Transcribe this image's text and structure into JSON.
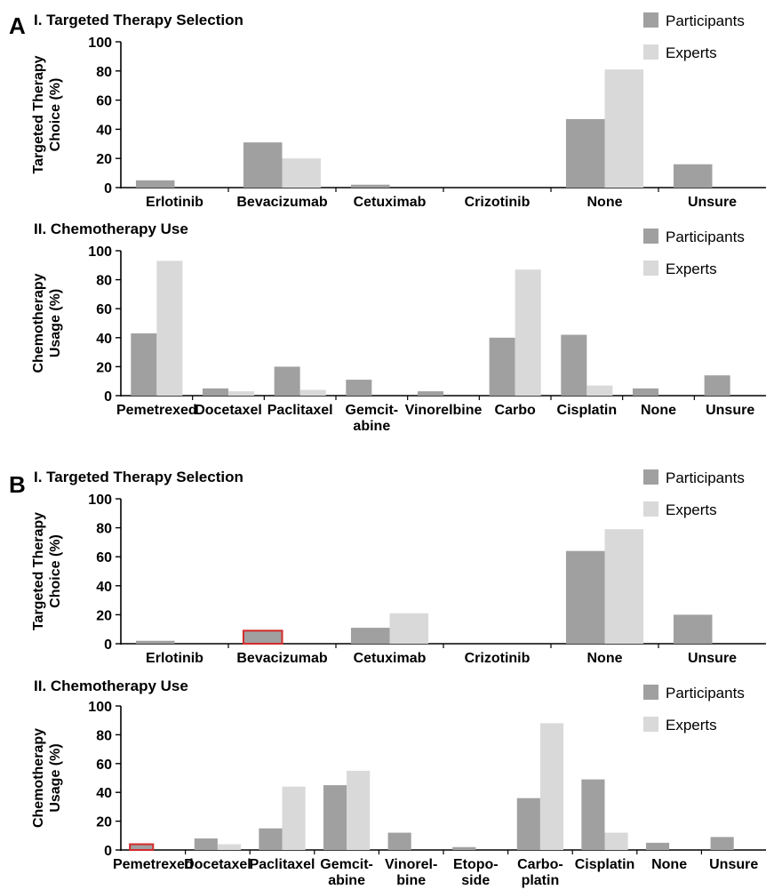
{
  "panels": [
    {
      "letter": "A"
    },
    {
      "letter": "B"
    }
  ],
  "legend": {
    "participants": "Participants",
    "experts": "Experts"
  },
  "colors": {
    "participants": "#a0a0a0",
    "experts": "#d9d9d9",
    "highlight_outline": "#d42a2a",
    "axis": "#000000"
  },
  "chart_data": [
    {
      "panel": "A",
      "type": "bar",
      "title": "I. Targeted Therapy Selection",
      "ylabel": [
        "Targeted Therapy",
        "Choice (%)"
      ],
      "ylim": [
        0,
        100
      ],
      "yticks": [
        0,
        20,
        40,
        60,
        80,
        100
      ],
      "categories": [
        [
          "Erlotinib"
        ],
        [
          "Bevacizumab"
        ],
        [
          "Cetuximab"
        ],
        [
          "Crizotinib"
        ],
        [
          "None"
        ],
        [
          "Unsure"
        ]
      ],
      "series": [
        {
          "name": "Participants",
          "values": [
            5,
            31,
            2,
            0,
            47,
            16
          ]
        },
        {
          "name": "Experts",
          "values": [
            0,
            20,
            0,
            0,
            81,
            0
          ]
        }
      ],
      "highlighted": [],
      "legend_position": "top-right"
    },
    {
      "panel": "A",
      "type": "bar",
      "title": "II. Chemotherapy Use",
      "ylabel": [
        "Chemotherapy",
        "Usage (%)"
      ],
      "ylim": [
        0,
        100
      ],
      "yticks": [
        0,
        20,
        40,
        60,
        80,
        100
      ],
      "categories": [
        [
          "Pemetrexed"
        ],
        [
          "Docetaxel"
        ],
        [
          "Paclitaxel"
        ],
        [
          "Gemcit-",
          "abine"
        ],
        [
          "Vinorelbine"
        ],
        [
          "Carbo"
        ],
        [
          "Cisplatin"
        ],
        [
          "None"
        ],
        [
          "Unsure"
        ]
      ],
      "series": [
        {
          "name": "Participants",
          "values": [
            43,
            5,
            20,
            11,
            3,
            40,
            42,
            5,
            14
          ]
        },
        {
          "name": "Experts",
          "values": [
            93,
            3,
            4,
            0,
            0,
            87,
            7,
            0,
            0
          ]
        }
      ],
      "highlighted": [],
      "legend_position": "top-right"
    },
    {
      "panel": "B",
      "type": "bar",
      "title": "I. Targeted Therapy Selection",
      "ylabel": [
        "Targeted Therapy",
        "Choice (%)"
      ],
      "ylim": [
        0,
        100
      ],
      "yticks": [
        0,
        20,
        40,
        60,
        80,
        100
      ],
      "categories": [
        [
          "Erlotinib"
        ],
        [
          "Bevacizumab"
        ],
        [
          "Cetuximab"
        ],
        [
          "Crizotinib"
        ],
        [
          "None"
        ],
        [
          "Unsure"
        ]
      ],
      "series": [
        {
          "name": "Participants",
          "values": [
            2,
            9,
            11,
            0,
            64,
            20
          ]
        },
        {
          "name": "Experts",
          "values": [
            0,
            0,
            21,
            0,
            79,
            0
          ]
        }
      ],
      "highlighted": [
        {
          "series": 0,
          "index": 1
        }
      ],
      "legend_position": "top-right"
    },
    {
      "panel": "B",
      "type": "bar",
      "title": "II. Chemotherapy Use",
      "ylabel": [
        "Chemotherapy",
        "Usage (%)"
      ],
      "ylim": [
        0,
        100
      ],
      "yticks": [
        0,
        20,
        40,
        60,
        80,
        100
      ],
      "categories": [
        [
          "Pemetrexed"
        ],
        [
          "Docetaxel"
        ],
        [
          "Paclitaxel"
        ],
        [
          "Gemcit-",
          "abine"
        ],
        [
          "Vinorel-",
          "bine"
        ],
        [
          "Etopo-",
          "side"
        ],
        [
          "Carbo-",
          "platin"
        ],
        [
          "Cisplatin"
        ],
        [
          "None"
        ],
        [
          "Unsure"
        ]
      ],
      "series": [
        {
          "name": "Participants",
          "values": [
            4,
            8,
            15,
            45,
            12,
            2,
            36,
            49,
            5,
            9
          ]
        },
        {
          "name": "Experts",
          "values": [
            0,
            4,
            44,
            55,
            0,
            0,
            88,
            12,
            0,
            0
          ]
        }
      ],
      "highlighted": [
        {
          "series": 0,
          "index": 0
        }
      ],
      "legend_position": "top-right"
    }
  ]
}
